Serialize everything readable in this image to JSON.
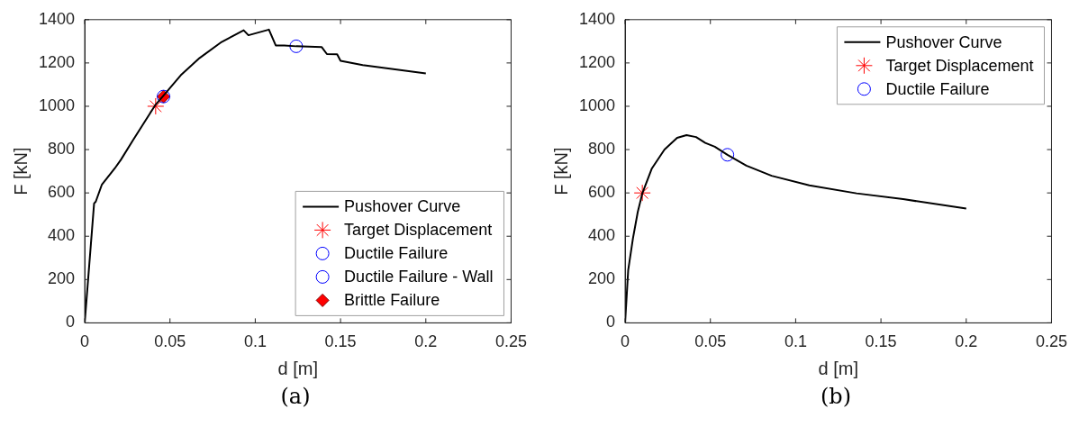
{
  "chart_data": [
    {
      "type": "line",
      "xlabel": "d [m]",
      "ylabel": "F [kN]",
      "xlim": [
        0,
        0.25
      ],
      "xticks": [
        0,
        0.05,
        0.1,
        0.15,
        0.2,
        0.25
      ],
      "ylim": [
        0,
        1400
      ],
      "yticks": [
        0,
        200,
        400,
        600,
        800,
        1000,
        1200,
        1400
      ],
      "grid": false,
      "legend": "bottom right",
      "annotations": [
        "(a)"
      ],
      "series": [
        {
          "name": "Pushover Curve",
          "type": "line",
          "marker": "none",
          "color": "#000000",
          "x": [
            0,
            0.0055,
            0.0065,
            0.0101,
            0.0176,
            0.0212,
            0.0286,
            0.0416,
            0.0462,
            0.0563,
            0.0674,
            0.0803,
            0.0932,
            0.096,
            0.108,
            0.112,
            0.117,
            0.124,
            0.139,
            0.142,
            0.148,
            0.15,
            0.163,
            0.182,
            0.2
          ],
          "values": [
            0,
            551,
            560,
            639,
            713,
            753,
            847,
            1008,
            1049,
            1143,
            1223,
            1297,
            1351,
            1328,
            1354,
            1281,
            1281,
            1277,
            1273,
            1241,
            1240,
            1210,
            1190,
            1170,
            1152
          ]
        },
        {
          "name": "Target Displacement",
          "type": "scatter",
          "marker": "cross",
          "color": "#ff0000",
          "x": [
            0.0416
          ],
          "values": [
            1000
          ]
        },
        {
          "name": "Ductile Failure",
          "type": "scatter",
          "marker": "circle",
          "color": "#0000ff",
          "x": [
            0.124
          ],
          "values": [
            1277
          ]
        },
        {
          "name": "Ductile Failure - Wall",
          "type": "scatter",
          "marker": "circle",
          "color": "#0000ff",
          "x": [
            0.0462
          ],
          "values": [
            1045
          ]
        },
        {
          "name": "Brittle Failure",
          "type": "scatter",
          "marker": "diamond",
          "color": "#ff0000",
          "x": [
            0.0462
          ],
          "values": [
            1045
          ]
        }
      ]
    },
    {
      "type": "line",
      "xlabel": "d [m]",
      "ylabel": "F [kN]",
      "xlim": [
        0,
        0.25
      ],
      "xticks": [
        0,
        0.05,
        0.1,
        0.15,
        0.2,
        0.25
      ],
      "ylim": [
        0,
        1400
      ],
      "yticks": [
        0,
        200,
        400,
        600,
        800,
        1000,
        1200,
        1400
      ],
      "grid": false,
      "legend": "top right",
      "annotations": [
        "(b)"
      ],
      "series": [
        {
          "name": "Pushover Curve",
          "type": "line",
          "marker": "none",
          "color": "#000000",
          "x": [
            0,
            0.0018,
            0.0046,
            0.0074,
            0.0101,
            0.0157,
            0.0231,
            0.0305,
            0.036,
            0.0416,
            0.047,
            0.0526,
            0.06,
            0.0711,
            0.0859,
            0.108,
            0.1357,
            0.163,
            0.2
          ],
          "values": [
            0,
            242,
            390,
            511,
            598,
            713,
            800,
            854,
            867,
            858,
            831,
            813,
            776,
            726,
            679,
            635,
            598,
            571,
            528
          ]
        },
        {
          "name": "Target Displacement",
          "type": "scatter",
          "marker": "cross",
          "color": "#ff0000",
          "x": [
            0.0101
          ],
          "values": [
            600
          ]
        },
        {
          "name": "Ductile Failure",
          "type": "scatter",
          "marker": "circle",
          "color": "#0000ff",
          "x": [
            0.06
          ],
          "values": [
            776
          ]
        }
      ]
    }
  ]
}
